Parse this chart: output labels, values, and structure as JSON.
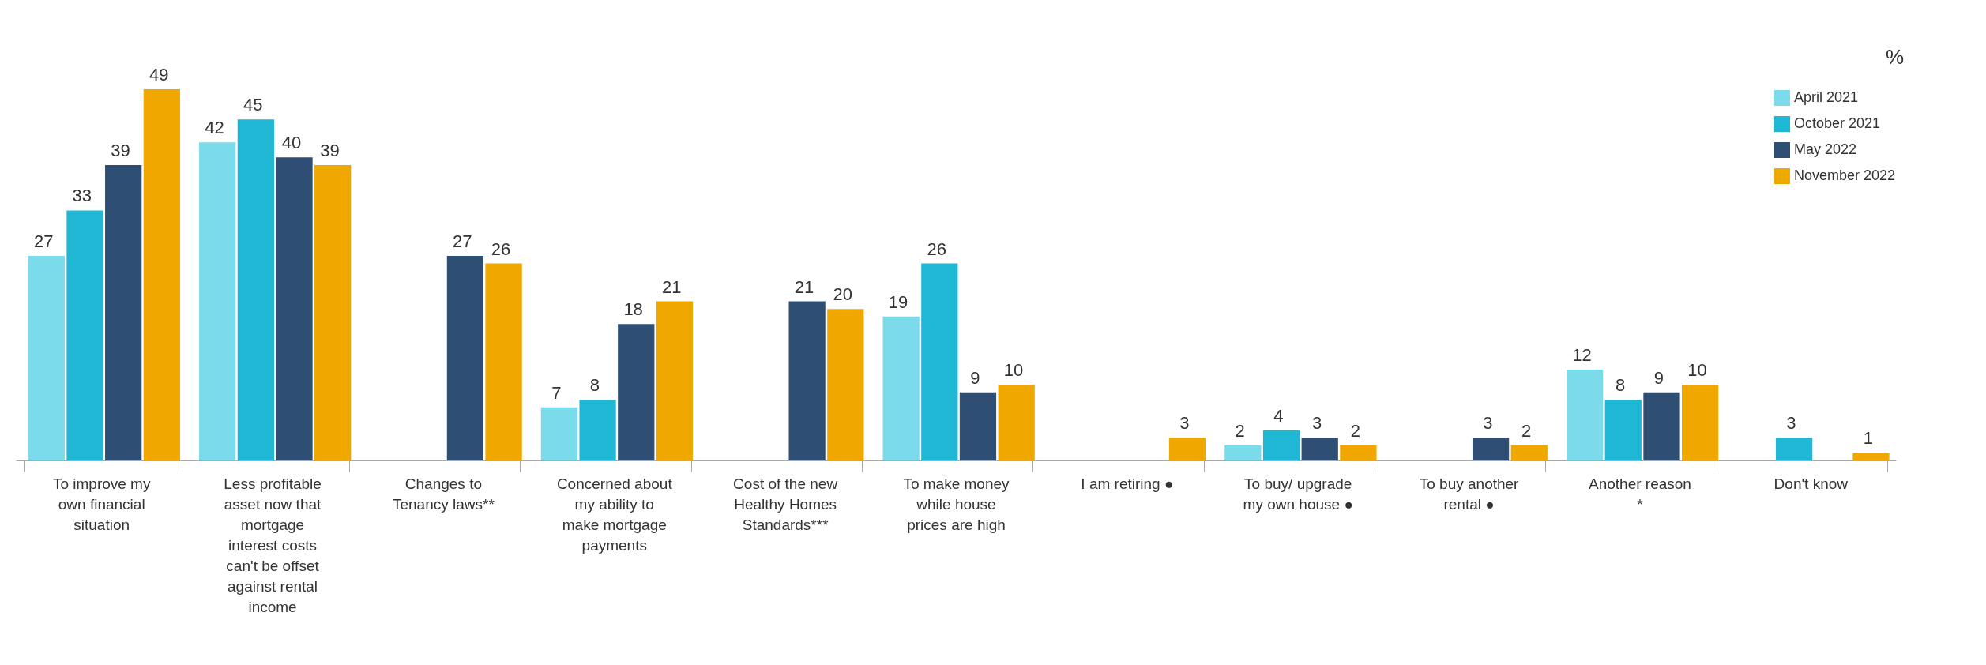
{
  "chart_data": {
    "type": "bar",
    "categories": [
      "To improve my own financial situation",
      "Less profitable asset now that mortgage interest costs can't be offset against rental income",
      "Changes to Tenancy laws**",
      "Concerned about my ability to make mortgage payments",
      "Cost of the new Healthy Homes Standards***",
      "To make money while house prices are high",
      "I am retiring ●",
      "To buy/ upgrade my own house ●",
      "To buy another rental ●",
      "Another reason *",
      "Don't know"
    ],
    "series": [
      {
        "name": "April 2021",
        "color": "#7cdbeb",
        "values": [
          27,
          42,
          null,
          7,
          null,
          19,
          null,
          2,
          null,
          12,
          null
        ]
      },
      {
        "name": "October 2021",
        "color": "#20b7d4",
        "values": [
          33,
          45,
          null,
          8,
          null,
          26,
          null,
          4,
          null,
          8,
          3
        ]
      },
      {
        "name": "May 2022",
        "color": "#2e4e73",
        "values": [
          39,
          40,
          27,
          18,
          21,
          9,
          null,
          3,
          3,
          9,
          null
        ]
      },
      {
        "name": "November 2022",
        "color": "#f0a800",
        "values": [
          49,
          39,
          26,
          21,
          20,
          10,
          3,
          2,
          2,
          10,
          1
        ]
      }
    ],
    "data_labels": true,
    "legend": "top right",
    "grid": false,
    "annotations": [
      "%"
    ]
  }
}
